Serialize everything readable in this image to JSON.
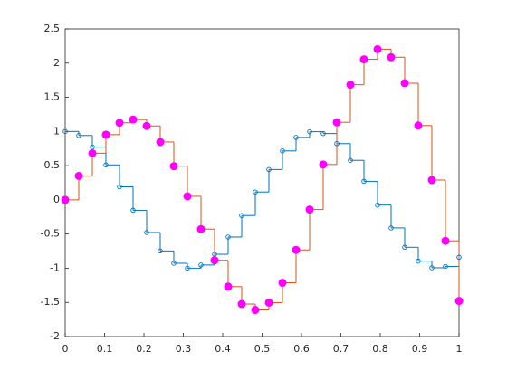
{
  "chart_data": {
    "type": "stairs",
    "x": [
      0,
      0.03448,
      0.06897,
      0.10345,
      0.13793,
      0.17241,
      0.2069,
      0.24138,
      0.27586,
      0.31034,
      0.34483,
      0.37931,
      0.41379,
      0.44828,
      0.48276,
      0.51724,
      0.55172,
      0.58621,
      0.62069,
      0.65517,
      0.68966,
      0.72414,
      0.75862,
      0.7931,
      0.82759,
      0.86207,
      0.89655,
      0.93103,
      0.96552,
      1
    ],
    "series": [
      {
        "color": "#0072BD",
        "marker": "open",
        "values": [
          1,
          0.9411,
          0.7714,
          0.5107,
          0.1905,
          -0.1528,
          -0.4777,
          -0.7471,
          -0.9276,
          -0.9992,
          -0.953,
          -0.7958,
          -0.5437,
          -0.2292,
          0.1149,
          0.4435,
          0.7155,
          0.9132,
          0.9964,
          0.9696,
          0.8222,
          0.5778,
          0.271,
          -0.0769,
          -0.4104,
          -0.6936,
          -0.8964,
          -0.9935,
          -0.9736,
          -0.8391
        ]
      },
      {
        "color": "#D95319",
        "marker": "filled",
        "marker_color": "#FF00FF",
        "values": [
          0,
          0.35,
          0.6818,
          0.9535,
          1.1269,
          1.1743,
          1.0805,
          0.8462,
          0.4923,
          0.0521,
          -0.4278,
          -0.8848,
          -1.2694,
          -1.524,
          -1.6098,
          -1.5034,
          -1.2129,
          -0.7325,
          -0.1419,
          0.5168,
          1.1344,
          1.6838,
          2.0556,
          2.2037,
          2.0863,
          1.706,
          1.0866,
          0.2897,
          -0.5998,
          -1.4788
        ]
      }
    ],
    "xlim": [
      0,
      1
    ],
    "xticks": [
      0,
      0.1,
      0.2,
      0.3,
      0.4,
      0.5,
      0.6,
      0.7,
      0.8,
      0.9,
      1
    ],
    "ylim": [
      -2,
      2.5
    ],
    "yticks": [
      -2,
      -1.5,
      -1,
      -0.5,
      0,
      0.5,
      1,
      1.5,
      2,
      2.5
    ]
  }
}
